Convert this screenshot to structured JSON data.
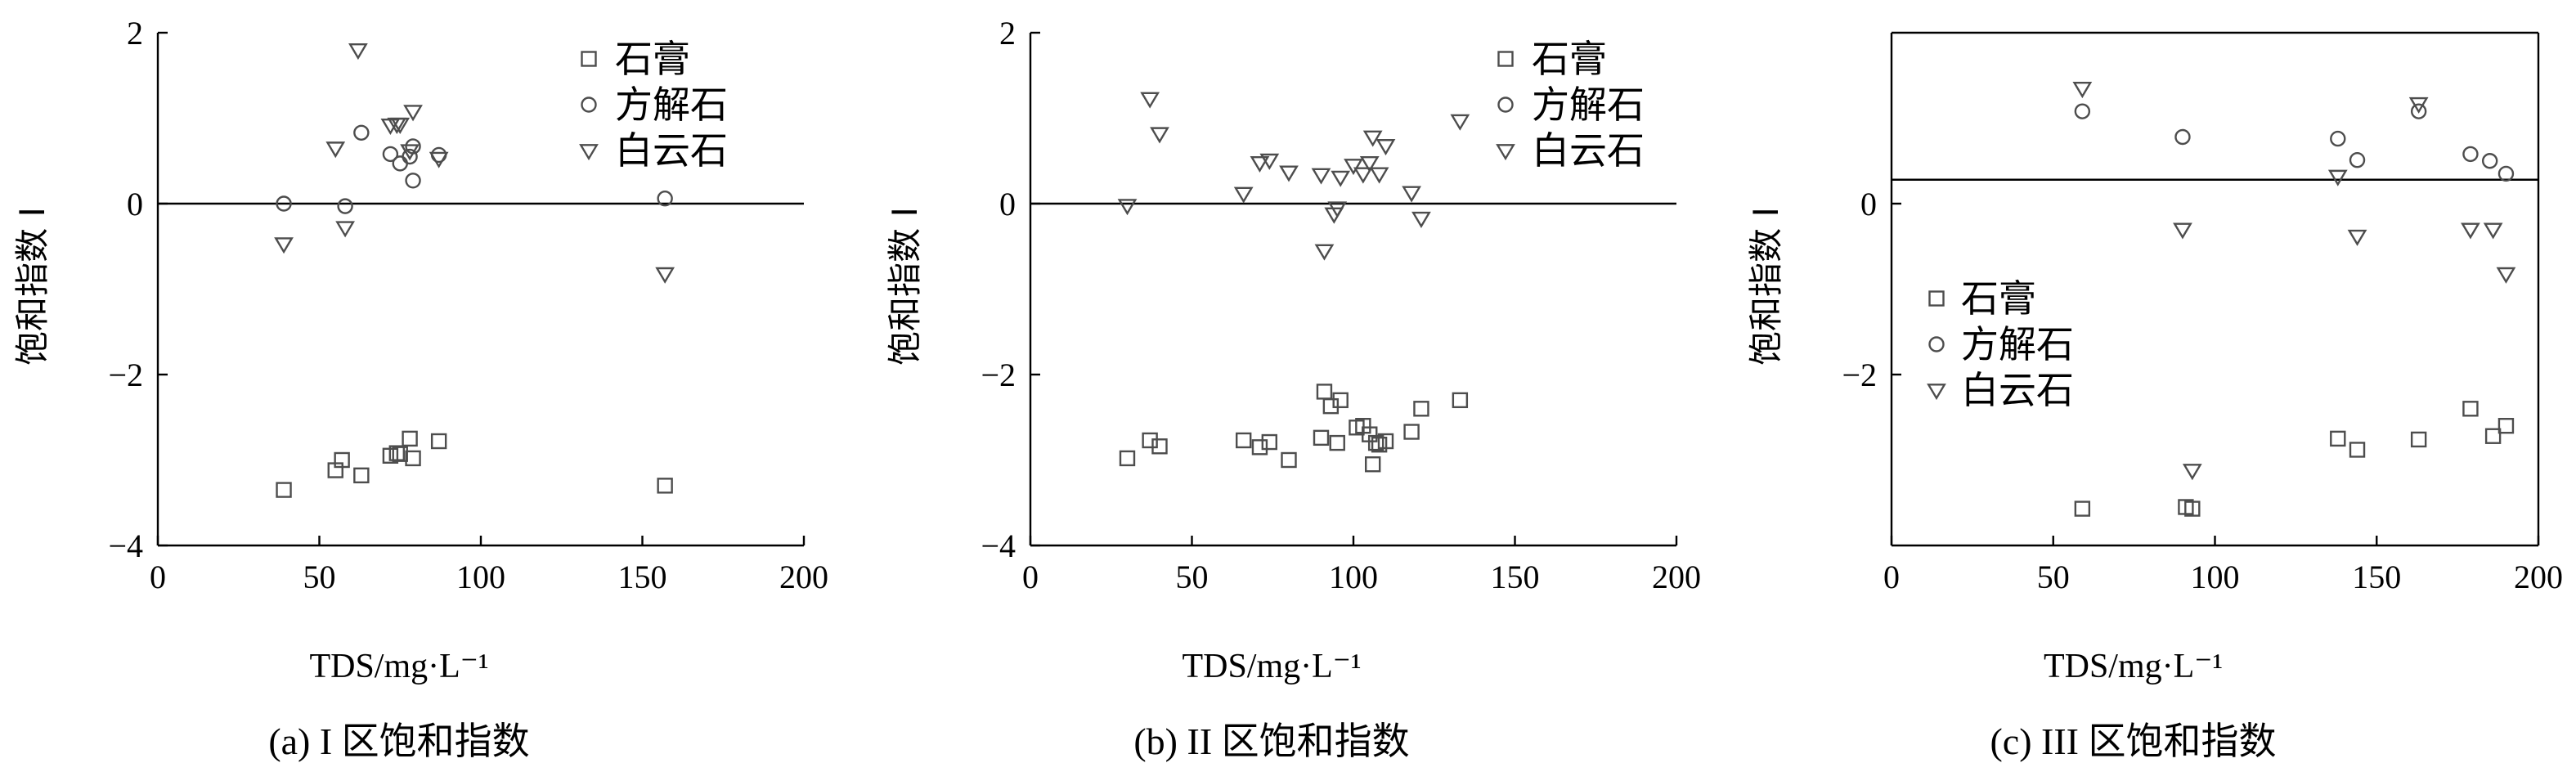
{
  "chart_data": [
    {
      "type": "scatter",
      "caption": "(a) I 区饱和指数",
      "xlabel": "TDS/mg·L⁻¹",
      "ylabel": "饱和指数 I",
      "xlim": [
        0,
        200
      ],
      "ylim": [
        -4,
        2
      ],
      "xticks": [
        "0",
        "50",
        "100",
        "150",
        "200"
      ],
      "yticks": [
        "2",
        "0",
        "−2",
        "−4"
      ],
      "reference_line_y": 0,
      "legend_position": "top-right",
      "series": [
        {
          "name": "石膏",
          "marker": "square",
          "points": [
            [
              39,
              -3.35
            ],
            [
              55,
              -3.12
            ],
            [
              57,
              -3.0
            ],
            [
              63,
              -3.18
            ],
            [
              72,
              -2.95
            ],
            [
              74,
              -2.92
            ],
            [
              75,
              -2.93
            ],
            [
              78,
              -2.75
            ],
            [
              79,
              -2.98
            ],
            [
              87,
              -2.78
            ],
            [
              157,
              -3.3
            ]
          ]
        },
        {
          "name": "方解石",
          "marker": "circle",
          "points": [
            [
              39,
              0.0
            ],
            [
              58,
              -0.03
            ],
            [
              63,
              0.83
            ],
            [
              72,
              0.58
            ],
            [
              75,
              0.47
            ],
            [
              78,
              0.55
            ],
            [
              79,
              0.27
            ],
            [
              79,
              0.67
            ],
            [
              87,
              0.57
            ],
            [
              157,
              0.06
            ]
          ]
        },
        {
          "name": "白云石",
          "marker": "triangle-down",
          "points": [
            [
              39,
              -0.47
            ],
            [
              55,
              0.65
            ],
            [
              58,
              -0.28
            ],
            [
              62,
              1.8
            ],
            [
              72,
              0.92
            ],
            [
              74,
              0.93
            ],
            [
              75,
              0.93
            ],
            [
              78,
              0.62
            ],
            [
              79,
              1.08
            ],
            [
              87,
              0.53
            ],
            [
              157,
              -0.82
            ]
          ]
        }
      ]
    },
    {
      "type": "scatter",
      "caption": "(b) II 区饱和指数",
      "xlabel": "TDS/mg·L⁻¹",
      "ylabel": "饱和指数 I",
      "xlim": [
        0,
        200
      ],
      "ylim": [
        -4,
        2
      ],
      "xticks": [
        "0",
        "50",
        "100",
        "150",
        "200"
      ],
      "yticks": [
        "2",
        "0",
        "−2",
        "−4"
      ],
      "reference_line_y": 0,
      "legend_position": "top-right",
      "series": [
        {
          "name": "石膏",
          "marker": "square",
          "points": [
            [
              30,
              -2.98
            ],
            [
              37,
              -2.77
            ],
            [
              40,
              -2.84
            ],
            [
              66,
              -2.77
            ],
            [
              71,
              -2.85
            ],
            [
              74,
              -2.79
            ],
            [
              80,
              -3.0
            ],
            [
              90,
              -2.74
            ],
            [
              91,
              -2.2
            ],
            [
              93,
              -2.37
            ],
            [
              95,
              -2.8
            ],
            [
              96,
              -2.3
            ],
            [
              101,
              -2.62
            ],
            [
              103,
              -2.6
            ],
            [
              105,
              -2.7
            ],
            [
              106,
              -3.05
            ],
            [
              107,
              -2.8
            ],
            [
              108,
              -2.82
            ],
            [
              110,
              -2.78
            ],
            [
              118,
              -2.67
            ],
            [
              121,
              -2.4
            ],
            [
              133,
              -2.3
            ]
          ]
        },
        {
          "name": "方解石",
          "marker": "circle",
          "points": []
        },
        {
          "name": "白云石",
          "marker": "triangle-down",
          "points": [
            [
              30,
              -0.02
            ],
            [
              37,
              1.23
            ],
            [
              40,
              0.82
            ],
            [
              66,
              0.12
            ],
            [
              71,
              0.48
            ],
            [
              74,
              0.51
            ],
            [
              80,
              0.37
            ],
            [
              90,
              0.34
            ],
            [
              91,
              -0.55
            ],
            [
              94,
              -0.12
            ],
            [
              95,
              -0.05
            ],
            [
              96,
              0.31
            ],
            [
              100,
              0.45
            ],
            [
              103,
              0.35
            ],
            [
              105,
              0.48
            ],
            [
              106,
              0.78
            ],
            [
              108,
              0.35
            ],
            [
              110,
              0.68
            ],
            [
              118,
              0.13
            ],
            [
              121,
              -0.17
            ],
            [
              133,
              0.97
            ]
          ]
        }
      ]
    },
    {
      "type": "scatter",
      "caption": "(c) III 区饱和指数",
      "xlabel": "TDS/mg·L⁻¹",
      "ylabel": "饱和指数 I",
      "xlim": [
        0,
        200
      ],
      "ylim": [
        -4,
        2
      ],
      "xticks": [
        "0",
        "50",
        "100",
        "150",
        "200"
      ],
      "yticks": [
        "0",
        "−2"
      ],
      "reference_line_y": 0.28,
      "legend_position": "center-left",
      "series": [
        {
          "name": "石膏",
          "marker": "square",
          "points": [
            [
              59,
              -3.57
            ],
            [
              91,
              -3.55
            ],
            [
              93,
              -3.57
            ],
            [
              138,
              -2.75
            ],
            [
              144,
              -2.88
            ],
            [
              163,
              -2.76
            ],
            [
              179,
              -2.4
            ],
            [
              186,
              -2.72
            ],
            [
              190,
              -2.6
            ]
          ]
        },
        {
          "name": "方解石",
          "marker": "circle",
          "points": [
            [
              59,
              1.08
            ],
            [
              90,
              0.78
            ],
            [
              138,
              0.76
            ],
            [
              144,
              0.51
            ],
            [
              163,
              1.08
            ],
            [
              179,
              0.58
            ],
            [
              185,
              0.5
            ],
            [
              190,
              0.35
            ]
          ]
        },
        {
          "name": "白云石",
          "marker": "triangle-down",
          "points": [
            [
              59,
              1.35
            ],
            [
              90,
              -0.3
            ],
            [
              93,
              -3.12
            ],
            [
              138,
              0.32
            ],
            [
              144,
              -0.38
            ],
            [
              163,
              1.17
            ],
            [
              179,
              -0.3
            ],
            [
              186,
              -0.3
            ],
            [
              190,
              -0.82
            ]
          ]
        }
      ]
    }
  ]
}
